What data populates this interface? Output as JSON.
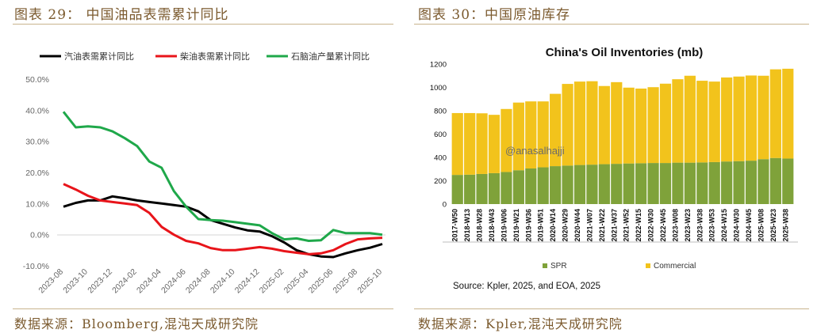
{
  "left": {
    "title": "图表 29： 中国油品表需累计同比",
    "source": "数据来源：Bloomberg,混沌天成研究院"
  },
  "right": {
    "title": "图表 30：中国原油库存",
    "source": "数据来源：Kpler,混沌天成研究院"
  },
  "colors": {
    "header_text": "#7b5a2e",
    "rule": "#c9b48d",
    "gasoline": "#000000",
    "diesel": "#e8141a",
    "naphtha": "#1fa84a",
    "spr": "#7fa23a",
    "commercial": "#f2c31c"
  },
  "chart_data": [
    {
      "type": "line",
      "title": "",
      "xlabel": "",
      "ylabel": "",
      "ylim": [
        -10,
        50
      ],
      "yticks": [
        "-10.0%",
        "0.0%",
        "10.0%",
        "20.0%",
        "30.0%",
        "40.0%",
        "50.0%"
      ],
      "xticks": [
        "2023-08",
        "2023-10",
        "2023-12",
        "2024-02",
        "2024-04",
        "2024-06",
        "2024-08",
        "2024-10",
        "2024-12",
        "2025-02",
        "2025-04",
        "2025-06",
        "2025-08",
        "2025-10"
      ],
      "grid": false,
      "legend_position": "top",
      "categories": [
        "2023-08",
        "2023-09",
        "2023-10",
        "2023-11",
        "2023-12",
        "2024-01",
        "2024-02",
        "2024-03",
        "2024-04",
        "2024-05",
        "2024-06",
        "2024-07",
        "2024-08",
        "2024-09",
        "2024-10",
        "2024-11",
        "2024-12",
        "2025-01",
        "2025-02",
        "2025-03",
        "2025-04",
        "2025-05",
        "2025-06",
        "2025-07",
        "2025-08",
        "2025-09",
        "2025-10"
      ],
      "series": [
        {
          "name": "汽油表需累计同比",
          "color": "#000000",
          "values": [
            9.0,
            10.2,
            11.0,
            11.0,
            12.3,
            11.7,
            11.0,
            10.5,
            10.0,
            9.5,
            9.0,
            7.5,
            4.7,
            3.5,
            2.3,
            1.4,
            1.0,
            -0.5,
            -2.5,
            -5.0,
            -6.3,
            -7.0,
            -7.2,
            -6.0,
            -5.0,
            -4.2,
            -3.0
          ]
        },
        {
          "name": "柴油表需累计同比",
          "color": "#e8141a",
          "values": [
            16.3,
            14.5,
            12.5,
            11.0,
            10.5,
            10.0,
            9.5,
            7.0,
            2.5,
            0.0,
            -2.0,
            -2.8,
            -4.3,
            -5.0,
            -5.0,
            -4.5,
            -4.0,
            -4.5,
            -5.3,
            -5.8,
            -6.3,
            -6.0,
            -5.0,
            -3.0,
            -1.5,
            -1.2,
            -1.0
          ]
        },
        {
          "name": "石脑油产量累计同比",
          "color": "#1fa84a",
          "values": [
            39.5,
            34.5,
            34.8,
            34.5,
            33.2,
            31.0,
            28.5,
            23.5,
            21.5,
            14.0,
            9.0,
            5.0,
            4.7,
            4.5,
            4.0,
            3.5,
            3.0,
            0.5,
            -1.5,
            -1.2,
            -2.0,
            -1.8,
            1.5,
            0.5,
            0.5,
            0.5,
            0.0
          ]
        }
      ]
    },
    {
      "type": "bar",
      "stacked": true,
      "title": "China's Oil Inventories (mb)",
      "xlabel": "",
      "ylabel": "",
      "ylim": [
        0,
        1200
      ],
      "yticks": [
        "0",
        "200",
        "400",
        "600",
        "800",
        "1000",
        "1200"
      ],
      "xticks": [
        "2017-W50",
        "2018-W13",
        "2018-W28",
        "2018-W43",
        "2019-W06",
        "2019-W21",
        "2019-W36",
        "2019-W51",
        "2020-W14",
        "2020-W29",
        "2020-W44",
        "2021-W07",
        "2021-W22",
        "2021-W37",
        "2021-W52",
        "2022-W15",
        "2022-W30",
        "2022-W45",
        "2023-W08",
        "2023-W23",
        "2023-W38",
        "2023-W53",
        "2024-W15",
        "2024-W30",
        "2024-W45",
        "2025-W08",
        "2025-W23",
        "2025-W38"
      ],
      "watermark": "@anasalhajji",
      "legend_position": "bottom",
      "source_note": "Source: Kpler, 2025, and EOA, 2025",
      "grid": false,
      "series": [
        {
          "name": "SPR",
          "color": "#7fa23a",
          "values": [
            250,
            252,
            258,
            265,
            275,
            290,
            305,
            315,
            325,
            330,
            335,
            338,
            342,
            345,
            348,
            350,
            352,
            352,
            355,
            355,
            357,
            360,
            365,
            368,
            372,
            385,
            395,
            390
          ]
        },
        {
          "name": "Commercial",
          "color": "#f2c31c",
          "values": [
            530,
            528,
            520,
            500,
            540,
            580,
            575,
            565,
            620,
            700,
            715,
            715,
            670,
            700,
            650,
            640,
            650,
            680,
            715,
            745,
            700,
            690,
            720,
            725,
            730,
            715,
            760,
            770
          ]
        }
      ]
    }
  ]
}
